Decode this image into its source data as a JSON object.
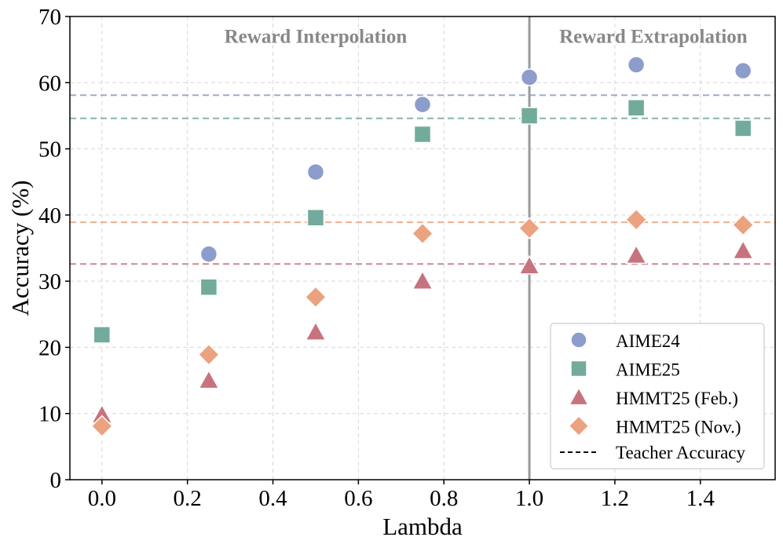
{
  "chart_data": {
    "type": "scatter",
    "xlabel": "Lambda",
    "ylabel": "Accuracy (%)",
    "xlim": [
      -0.075,
      1.575
    ],
    "ylim": [
      0,
      70
    ],
    "x_ticks": [
      0.0,
      0.2,
      0.4,
      0.6,
      0.8,
      1.0,
      1.2,
      1.4
    ],
    "x_tick_labels": [
      "0.0",
      "0.2",
      "0.4",
      "0.6",
      "0.8",
      "1.0",
      "1.2",
      "1.4"
    ],
    "y_ticks": [
      0,
      10,
      20,
      30,
      40,
      50,
      60,
      70
    ],
    "y_tick_labels": [
      "0",
      "10",
      "20",
      "30",
      "40",
      "50",
      "60",
      "70"
    ],
    "grid": true,
    "divider_x": 1.0,
    "region_labels": [
      {
        "text": "Reward Interpolation",
        "x": 0.5,
        "y": 67
      },
      {
        "text": "Reward Extrapolation",
        "x": 1.29,
        "y": 67
      }
    ],
    "x": [
      0.0,
      0.25,
      0.5,
      0.75,
      1.0,
      1.25,
      1.5
    ],
    "series": [
      {
        "name": "AIME24",
        "marker": "circle",
        "color": "#8c9ccc",
        "values": [
          21.7,
          34.1,
          46.5,
          56.7,
          60.8,
          62.7,
          61.8
        ],
        "teacher": 58.1
      },
      {
        "name": "AIME25",
        "marker": "square",
        "color": "#72ab9b",
        "values": [
          21.9,
          29.1,
          39.6,
          52.2,
          55.0,
          56.2,
          53.1
        ],
        "teacher": 54.6
      },
      {
        "name": "HMMT25 (Feb.)",
        "marker": "triangle",
        "color": "#c7737e",
        "values": [
          9.8,
          15.0,
          22.3,
          30.0,
          32.3,
          33.9,
          34.6
        ],
        "teacher": 32.6
      },
      {
        "name": "HMMT25 (Nov.)",
        "marker": "diamond",
        "color": "#eba27e",
        "values": [
          8.1,
          18.9,
          27.6,
          37.2,
          38.0,
          39.3,
          38.5
        ],
        "teacher": 38.9
      }
    ],
    "legend": {
      "position": "lower-right",
      "extra_entry": "Teacher Accuracy"
    }
  }
}
